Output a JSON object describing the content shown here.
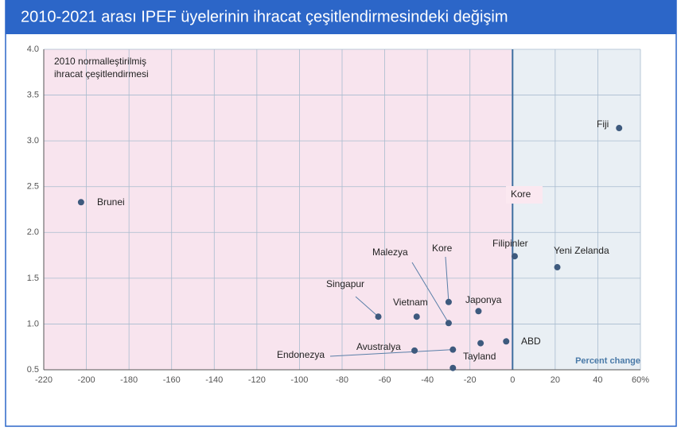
{
  "chart_data": {
    "type": "scatter",
    "title": "2010-2021 arası IPEF üyelerinin ihracat çeşitlendirmesindeki değişim",
    "y_annotation": [
      "2010 normalleştirilmiş",
      "ihracat çeşitlendirmesi"
    ],
    "x_label": "Percent change",
    "annotation": "Kore",
    "color": "#3e5a7e",
    "x": [
      -202.5,
      50,
      1,
      21,
      -30,
      -30,
      -16,
      -45,
      -63,
      -3,
      -15,
      -28,
      -46,
      -28
    ],
    "values": [
      2.33,
      3.14,
      1.74,
      1.62,
      1.24,
      1.01,
      1.14,
      1.08,
      1.08,
      0.81,
      0.79,
      0.72,
      0.71,
      0.52
    ],
    "point_labels": [
      "Brunei",
      "Fiji",
      "Filipinler",
      "Yeni Zelanda",
      "Kore",
      "Malezya",
      "Japonya",
      "Vietnam",
      "Singapur",
      "ABD",
      "Tayland",
      "Endonezya",
      "Avustralya",
      null
    ],
    "xlim": [
      -220,
      60
    ],
    "xticks": [
      -220,
      -200,
      -180,
      -160,
      -140,
      -120,
      -100,
      -80,
      -60,
      -40,
      -20,
      0,
      20,
      40,
      {
        "value": 60,
        "label": "60%"
      }
    ],
    "ylim": [
      0.5,
      4.0
    ],
    "yticks": [
      0.5,
      {
        "value": 1.0,
        "label": "1.0"
      },
      1.5,
      {
        "value": 2.0,
        "label": "2.0"
      },
      2.5,
      {
        "value": 3.0,
        "label": "3.0"
      },
      3.5,
      {
        "value": 4.0,
        "label": "4.0"
      }
    ],
    "grid": true
  }
}
